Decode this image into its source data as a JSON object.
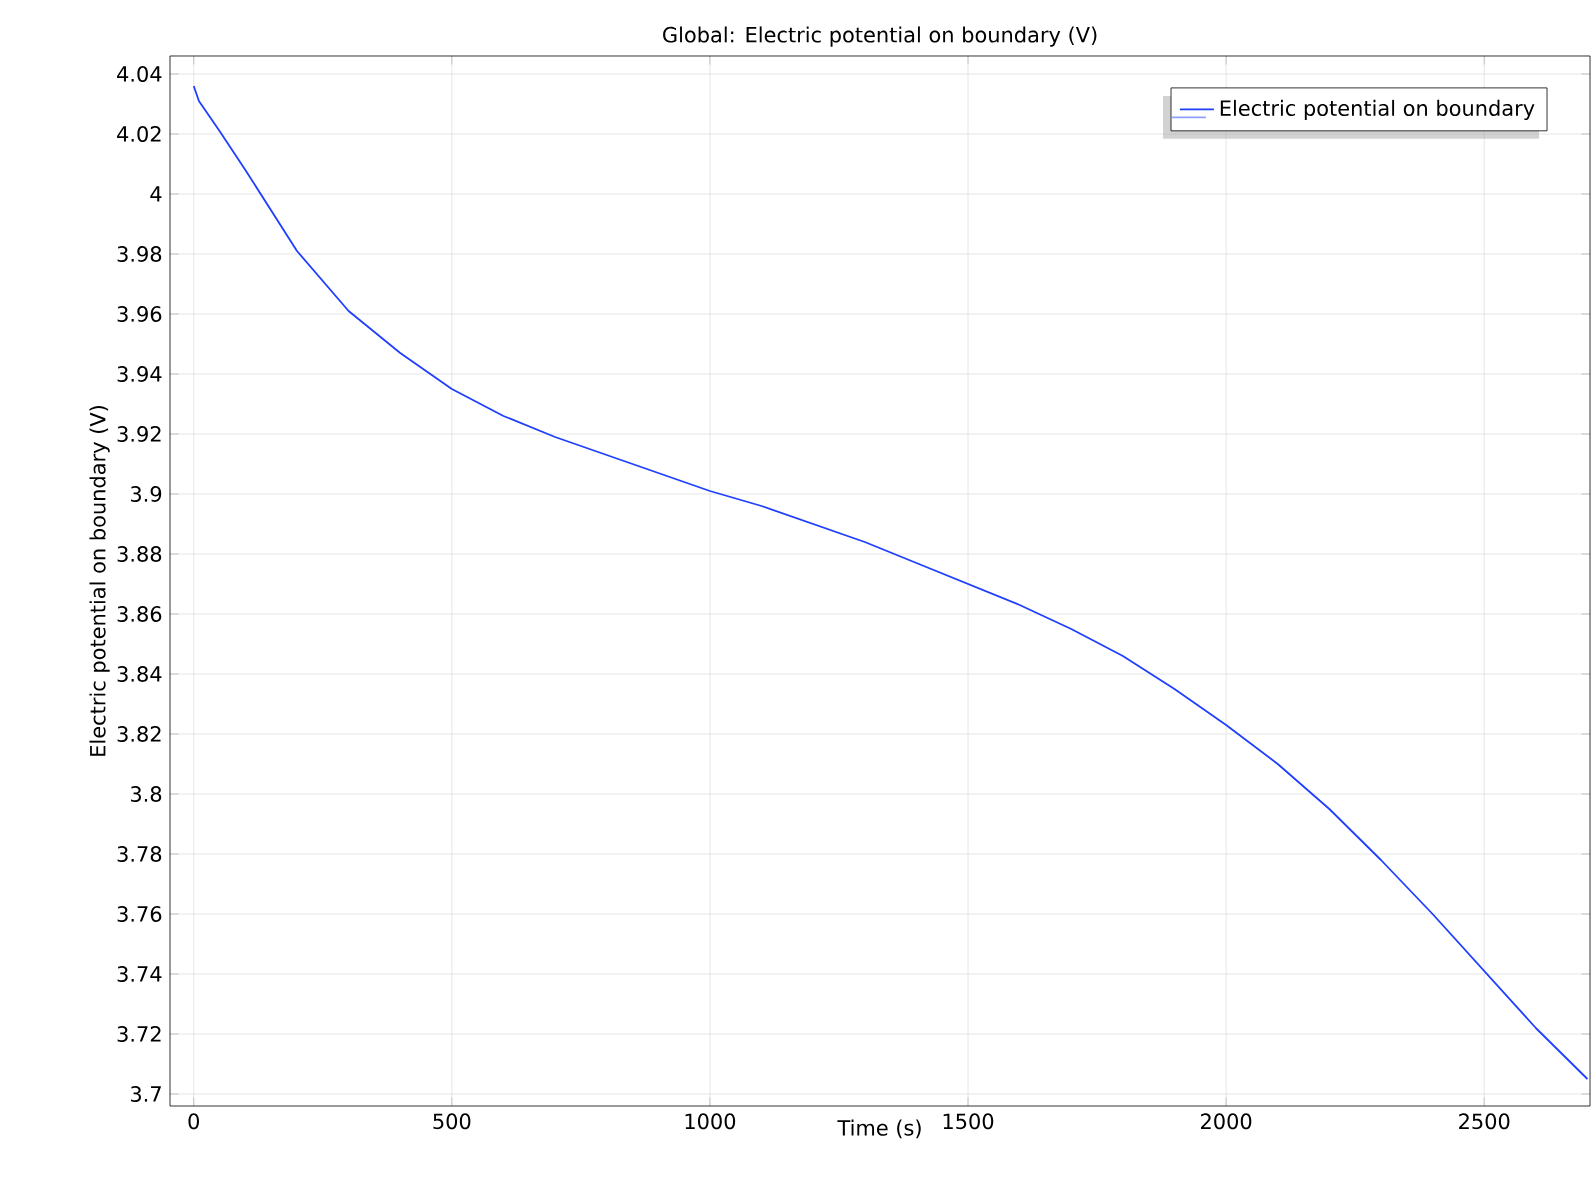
{
  "chart_data": {
    "type": "line",
    "title": "Global: Electric potential on boundary (V)",
    "xlabel": "Time (s)",
    "ylabel": "Electric potential on boundary (V)",
    "x": [
      0,
      10,
      50,
      100,
      200,
      300,
      400,
      500,
      600,
      700,
      800,
      900,
      1000,
      1100,
      1200,
      1300,
      1400,
      1500,
      1600,
      1700,
      1800,
      1900,
      2000,
      2100,
      2200,
      2300,
      2400,
      2500,
      2600,
      2700
    ],
    "series": [
      {
        "name": "Electric potential on boundary",
        "color": "#1f3fff",
        "values": [
          4.036,
          4.031,
          4.021,
          4.008,
          3.981,
          3.961,
          3.947,
          3.935,
          3.926,
          3.919,
          3.913,
          3.907,
          3.901,
          3.896,
          3.89,
          3.884,
          3.877,
          3.87,
          3.863,
          3.855,
          3.846,
          3.835,
          3.823,
          3.81,
          3.795,
          3.778,
          3.76,
          3.741,
          3.722,
          3.705
        ]
      }
    ],
    "xlim": [
      -46,
      2705
    ],
    "ylim": [
      3.696,
      4.046
    ],
    "xticks": [
      0,
      500,
      1000,
      1500,
      2000,
      2500
    ],
    "yticks": [
      3.7,
      3.72,
      3.74,
      3.76,
      3.78,
      3.8,
      3.82,
      3.84,
      3.86,
      3.88,
      3.9,
      3.92,
      3.94,
      3.96,
      3.98,
      4,
      4.02,
      4.04
    ],
    "grid": true,
    "legend": "top right",
    "marker": "none",
    "line_style": "solid"
  }
}
